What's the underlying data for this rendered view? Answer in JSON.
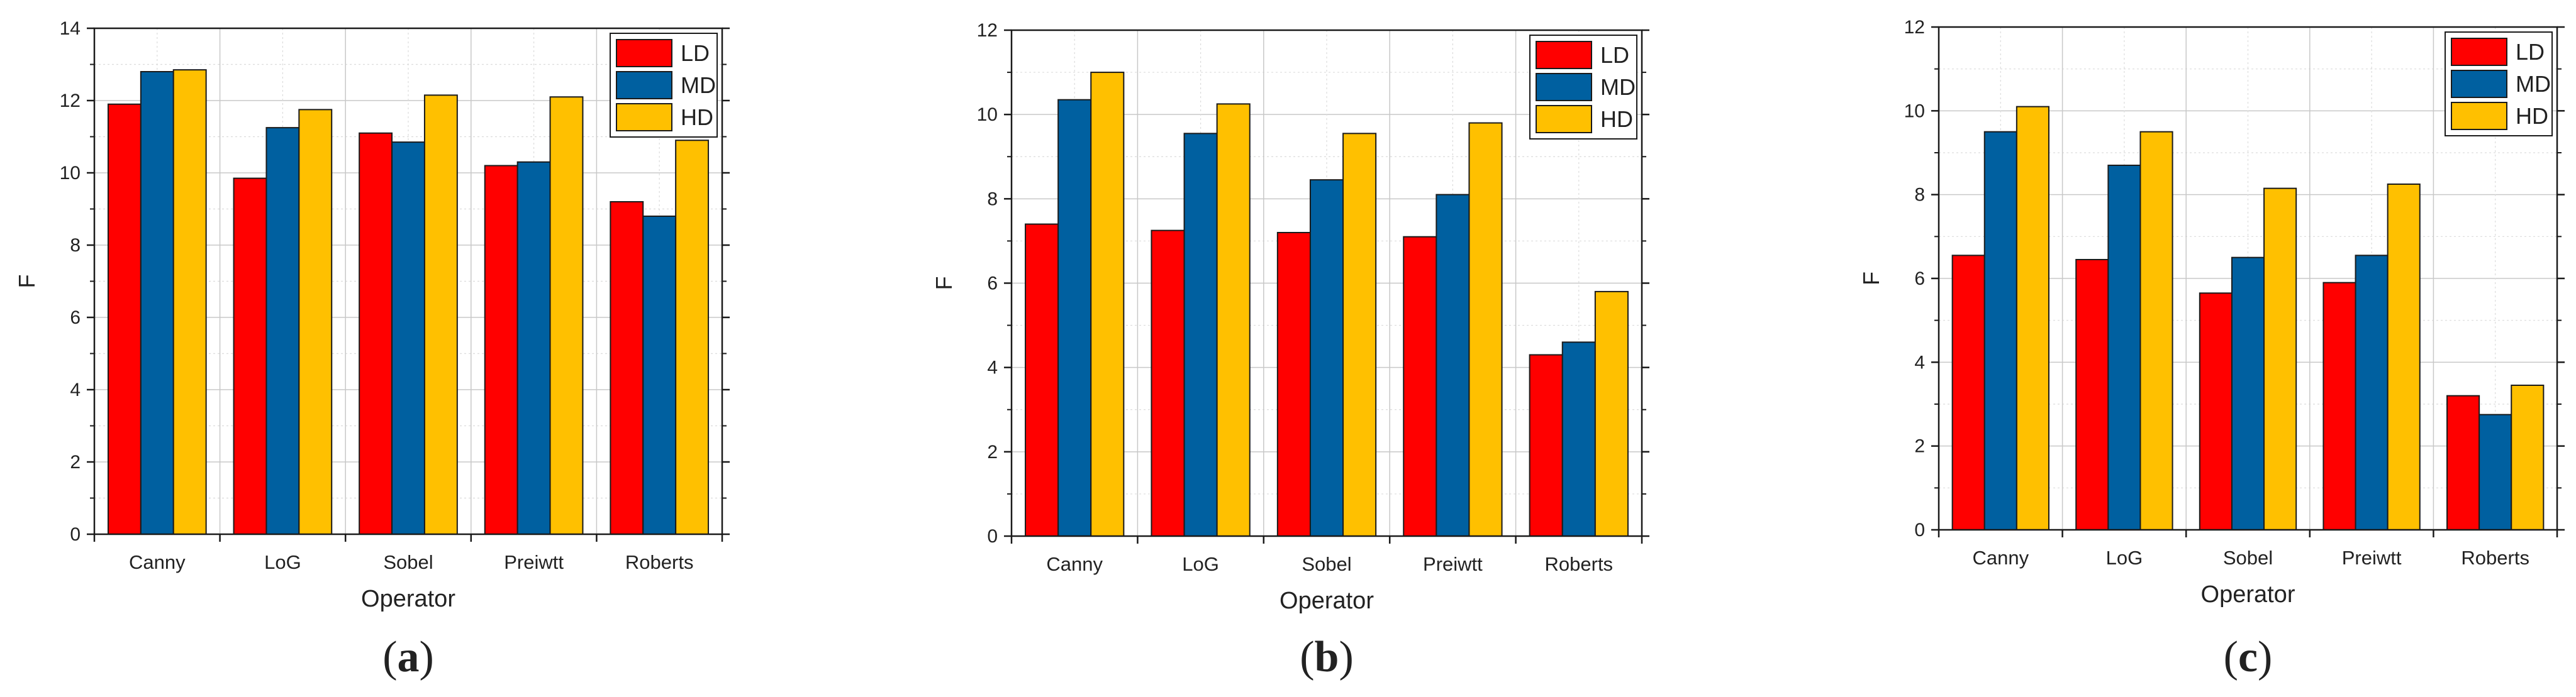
{
  "legend": {
    "position": "top-right"
  },
  "colors": {
    "LD": "#ff0000",
    "MD": "#0060a0",
    "HD": "#ffc000"
  },
  "chart_data": [
    {
      "type": "bar",
      "panel_label": "a",
      "categories": [
        "Canny",
        "LoG",
        "Sobel",
        "Preiwtt",
        "Roberts"
      ],
      "series": [
        {
          "name": "LD",
          "values": [
            11.9,
            9.85,
            11.1,
            10.2,
            9.2
          ]
        },
        {
          "name": "MD",
          "values": [
            12.8,
            11.25,
            10.85,
            10.3,
            8.8
          ]
        },
        {
          "name": "HD",
          "values": [
            12.85,
            11.75,
            12.15,
            12.1,
            10.9
          ]
        }
      ],
      "xlabel": "Operator",
      "ylabel": "F",
      "ylim": [
        0,
        14
      ],
      "yticks": [
        0,
        2,
        4,
        6,
        8,
        10,
        12,
        14
      ],
      "grid": true
    },
    {
      "type": "bar",
      "panel_label": "b",
      "categories": [
        "Canny",
        "LoG",
        "Sobel",
        "Preiwtt",
        "Roberts"
      ],
      "series": [
        {
          "name": "LD",
          "values": [
            7.4,
            7.25,
            7.2,
            7.1,
            4.3
          ]
        },
        {
          "name": "MD",
          "values": [
            10.35,
            9.55,
            8.45,
            8.1,
            4.6
          ]
        },
        {
          "name": "HD",
          "values": [
            11.0,
            10.25,
            9.55,
            9.8,
            5.8
          ]
        }
      ],
      "xlabel": "Operator",
      "ylabel": "F",
      "ylim": [
        0,
        12
      ],
      "yticks": [
        0,
        2,
        4,
        6,
        8,
        10,
        12
      ],
      "grid": true
    },
    {
      "type": "bar",
      "panel_label": "c",
      "categories": [
        "Canny",
        "LoG",
        "Sobel",
        "Preiwtt",
        "Roberts"
      ],
      "series": [
        {
          "name": "LD",
          "values": [
            6.55,
            6.45,
            5.65,
            5.9,
            3.2
          ]
        },
        {
          "name": "MD",
          "values": [
            9.5,
            8.7,
            6.5,
            6.55,
            2.75
          ]
        },
        {
          "name": "HD",
          "values": [
            10.1,
            9.5,
            8.15,
            8.25,
            3.45
          ]
        }
      ],
      "xlabel": "Operator",
      "ylabel": "F",
      "ylim": [
        0,
        12
      ],
      "yticks": [
        0,
        2,
        4,
        6,
        8,
        10,
        12
      ],
      "grid": true
    }
  ]
}
